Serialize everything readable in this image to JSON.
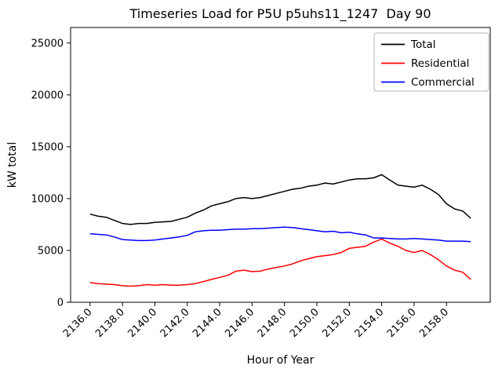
{
  "figure": {
    "title": "Timeseries Load for P5U p5uhs11_1247  Day 90",
    "xlabel": "Hour of Year",
    "ylabel": "kW total"
  },
  "chart_data": {
    "type": "line",
    "title": "Timeseries Load for P5U p5uhs11_1247  Day 90",
    "xlabel": "Hour of Year",
    "ylabel": "kW total",
    "xlim": [
      2134.8,
      2160.7
    ],
    "ylim": [
      0,
      26500
    ],
    "grid": false,
    "legend_position": "upper right",
    "x_tick_values": [
      2136,
      2138,
      2140,
      2142,
      2144,
      2146,
      2148,
      2150,
      2152,
      2154,
      2156,
      2158
    ],
    "x_tick_labels": [
      "2136.0",
      "2138.0",
      "2140.0",
      "2142.0",
      "2144.0",
      "2146.0",
      "2148.0",
      "2150.0",
      "2152.0",
      "2154.0",
      "2156.0",
      "2158.0"
    ],
    "y_tick_values": [
      0,
      5000,
      10000,
      15000,
      20000,
      25000
    ],
    "y_tick_labels": [
      "0",
      "5000",
      "10000",
      "15000",
      "20000",
      "25000"
    ],
    "x": [
      2136.0,
      2136.5,
      2137.0,
      2137.5,
      2138.0,
      2138.5,
      2139.0,
      2139.5,
      2140.0,
      2140.5,
      2141.0,
      2141.5,
      2142.0,
      2142.5,
      2143.0,
      2143.5,
      2144.0,
      2144.5,
      2145.0,
      2145.5,
      2146.0,
      2146.5,
      2147.0,
      2147.5,
      2148.0,
      2148.5,
      2149.0,
      2149.5,
      2150.0,
      2150.5,
      2151.0,
      2151.5,
      2152.0,
      2152.5,
      2153.0,
      2153.5,
      2154.0,
      2154.5,
      2155.0,
      2155.5,
      2156.0,
      2156.5,
      2157.0,
      2157.5,
      2158.0,
      2158.5,
      2159.0,
      2159.5
    ],
    "series": [
      {
        "name": "Total",
        "color": "#000000",
        "values": [
          8500,
          8300,
          8200,
          7900,
          7600,
          7500,
          7600,
          7600,
          7700,
          7750,
          7800,
          8000,
          8200,
          8600,
          8900,
          9300,
          9500,
          9700,
          10000,
          10100,
          10000,
          10100,
          10300,
          10500,
          10700,
          10900,
          11000,
          11200,
          11300,
          11500,
          11400,
          11600,
          11800,
          11900,
          11900,
          12000,
          12300,
          11800,
          11300,
          11200,
          11100,
          11300,
          10900,
          10400,
          9500,
          9000,
          8800,
          8100
        ]
      },
      {
        "name": "Residential",
        "color": "#ff0000",
        "values": [
          1900,
          1800,
          1750,
          1700,
          1600,
          1550,
          1600,
          1700,
          1650,
          1700,
          1650,
          1650,
          1700,
          1800,
          2000,
          2200,
          2400,
          2600,
          3000,
          3100,
          2950,
          3000,
          3200,
          3350,
          3500,
          3700,
          4000,
          4200,
          4400,
          4500,
          4600,
          4800,
          5200,
          5300,
          5400,
          5800,
          6100,
          5700,
          5400,
          5000,
          4800,
          5000,
          4600,
          4100,
          3500,
          3100,
          2900,
          2200
        ]
      },
      {
        "name": "Commercial",
        "color": "#0000ff",
        "values": [
          6600,
          6550,
          6500,
          6300,
          6050,
          6000,
          5950,
          5950,
          6000,
          6100,
          6200,
          6300,
          6450,
          6800,
          6900,
          6950,
          6950,
          7000,
          7050,
          7050,
          7100,
          7100,
          7150,
          7200,
          7250,
          7200,
          7100,
          7000,
          6900,
          6800,
          6850,
          6700,
          6750,
          6600,
          6500,
          6200,
          6200,
          6150,
          6100,
          6100,
          6150,
          6100,
          6050,
          6000,
          5900,
          5900,
          5900,
          5850
        ]
      }
    ]
  }
}
